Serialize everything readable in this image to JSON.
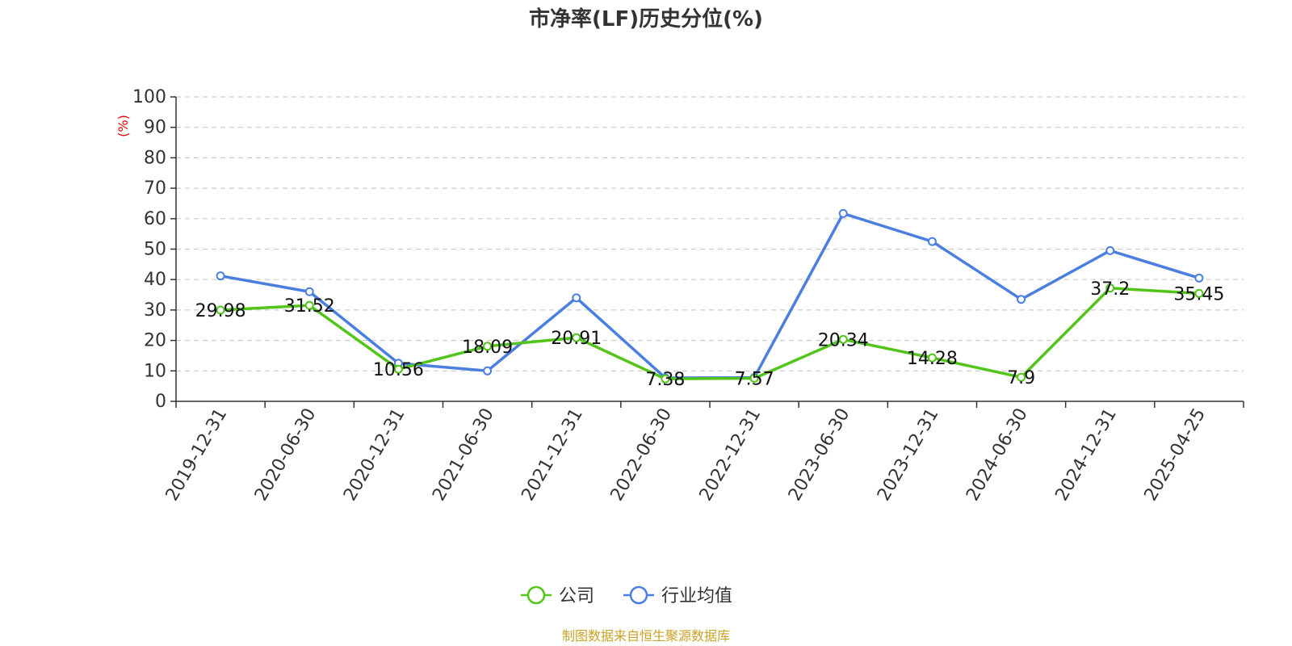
{
  "chart_data": {
    "type": "line",
    "title": "市净率(LF)历史分位(%)",
    "ylabel": "(%)",
    "ylim": [
      0,
      100
    ],
    "y_ticks": [
      0,
      10,
      20,
      30,
      40,
      50,
      60,
      70,
      80,
      90,
      100
    ],
    "grid": true,
    "legend_position": "bottom",
    "categories": [
      "2019-12-31",
      "2020-06-30",
      "2020-12-31",
      "2021-06-30",
      "2021-12-31",
      "2022-06-30",
      "2022-12-31",
      "2023-06-30",
      "2023-12-31",
      "2024-06-30",
      "2024-12-31",
      "2025-04-25"
    ],
    "series": [
      {
        "name": "公司",
        "color": "#52c41a",
        "values": [
          29.98,
          31.52,
          10.56,
          18.09,
          20.91,
          7.38,
          7.57,
          20.34,
          14.28,
          7.9,
          37.2,
          35.45
        ],
        "labels": [
          "29.98",
          "31.52",
          "10.56",
          "18.09",
          "20.91",
          "7.38",
          "7.57",
          "20.34",
          "14.28",
          "7.9",
          "37.2",
          "35.45"
        ]
      },
      {
        "name": "行业均值",
        "color": "#4a7fe0",
        "values": [
          41.2,
          36.0,
          12.5,
          10.0,
          34.0,
          7.7,
          7.8,
          61.7,
          52.5,
          33.5,
          49.5,
          40.5
        ]
      }
    ],
    "source": "制图数据来自恒生聚源数据库"
  }
}
